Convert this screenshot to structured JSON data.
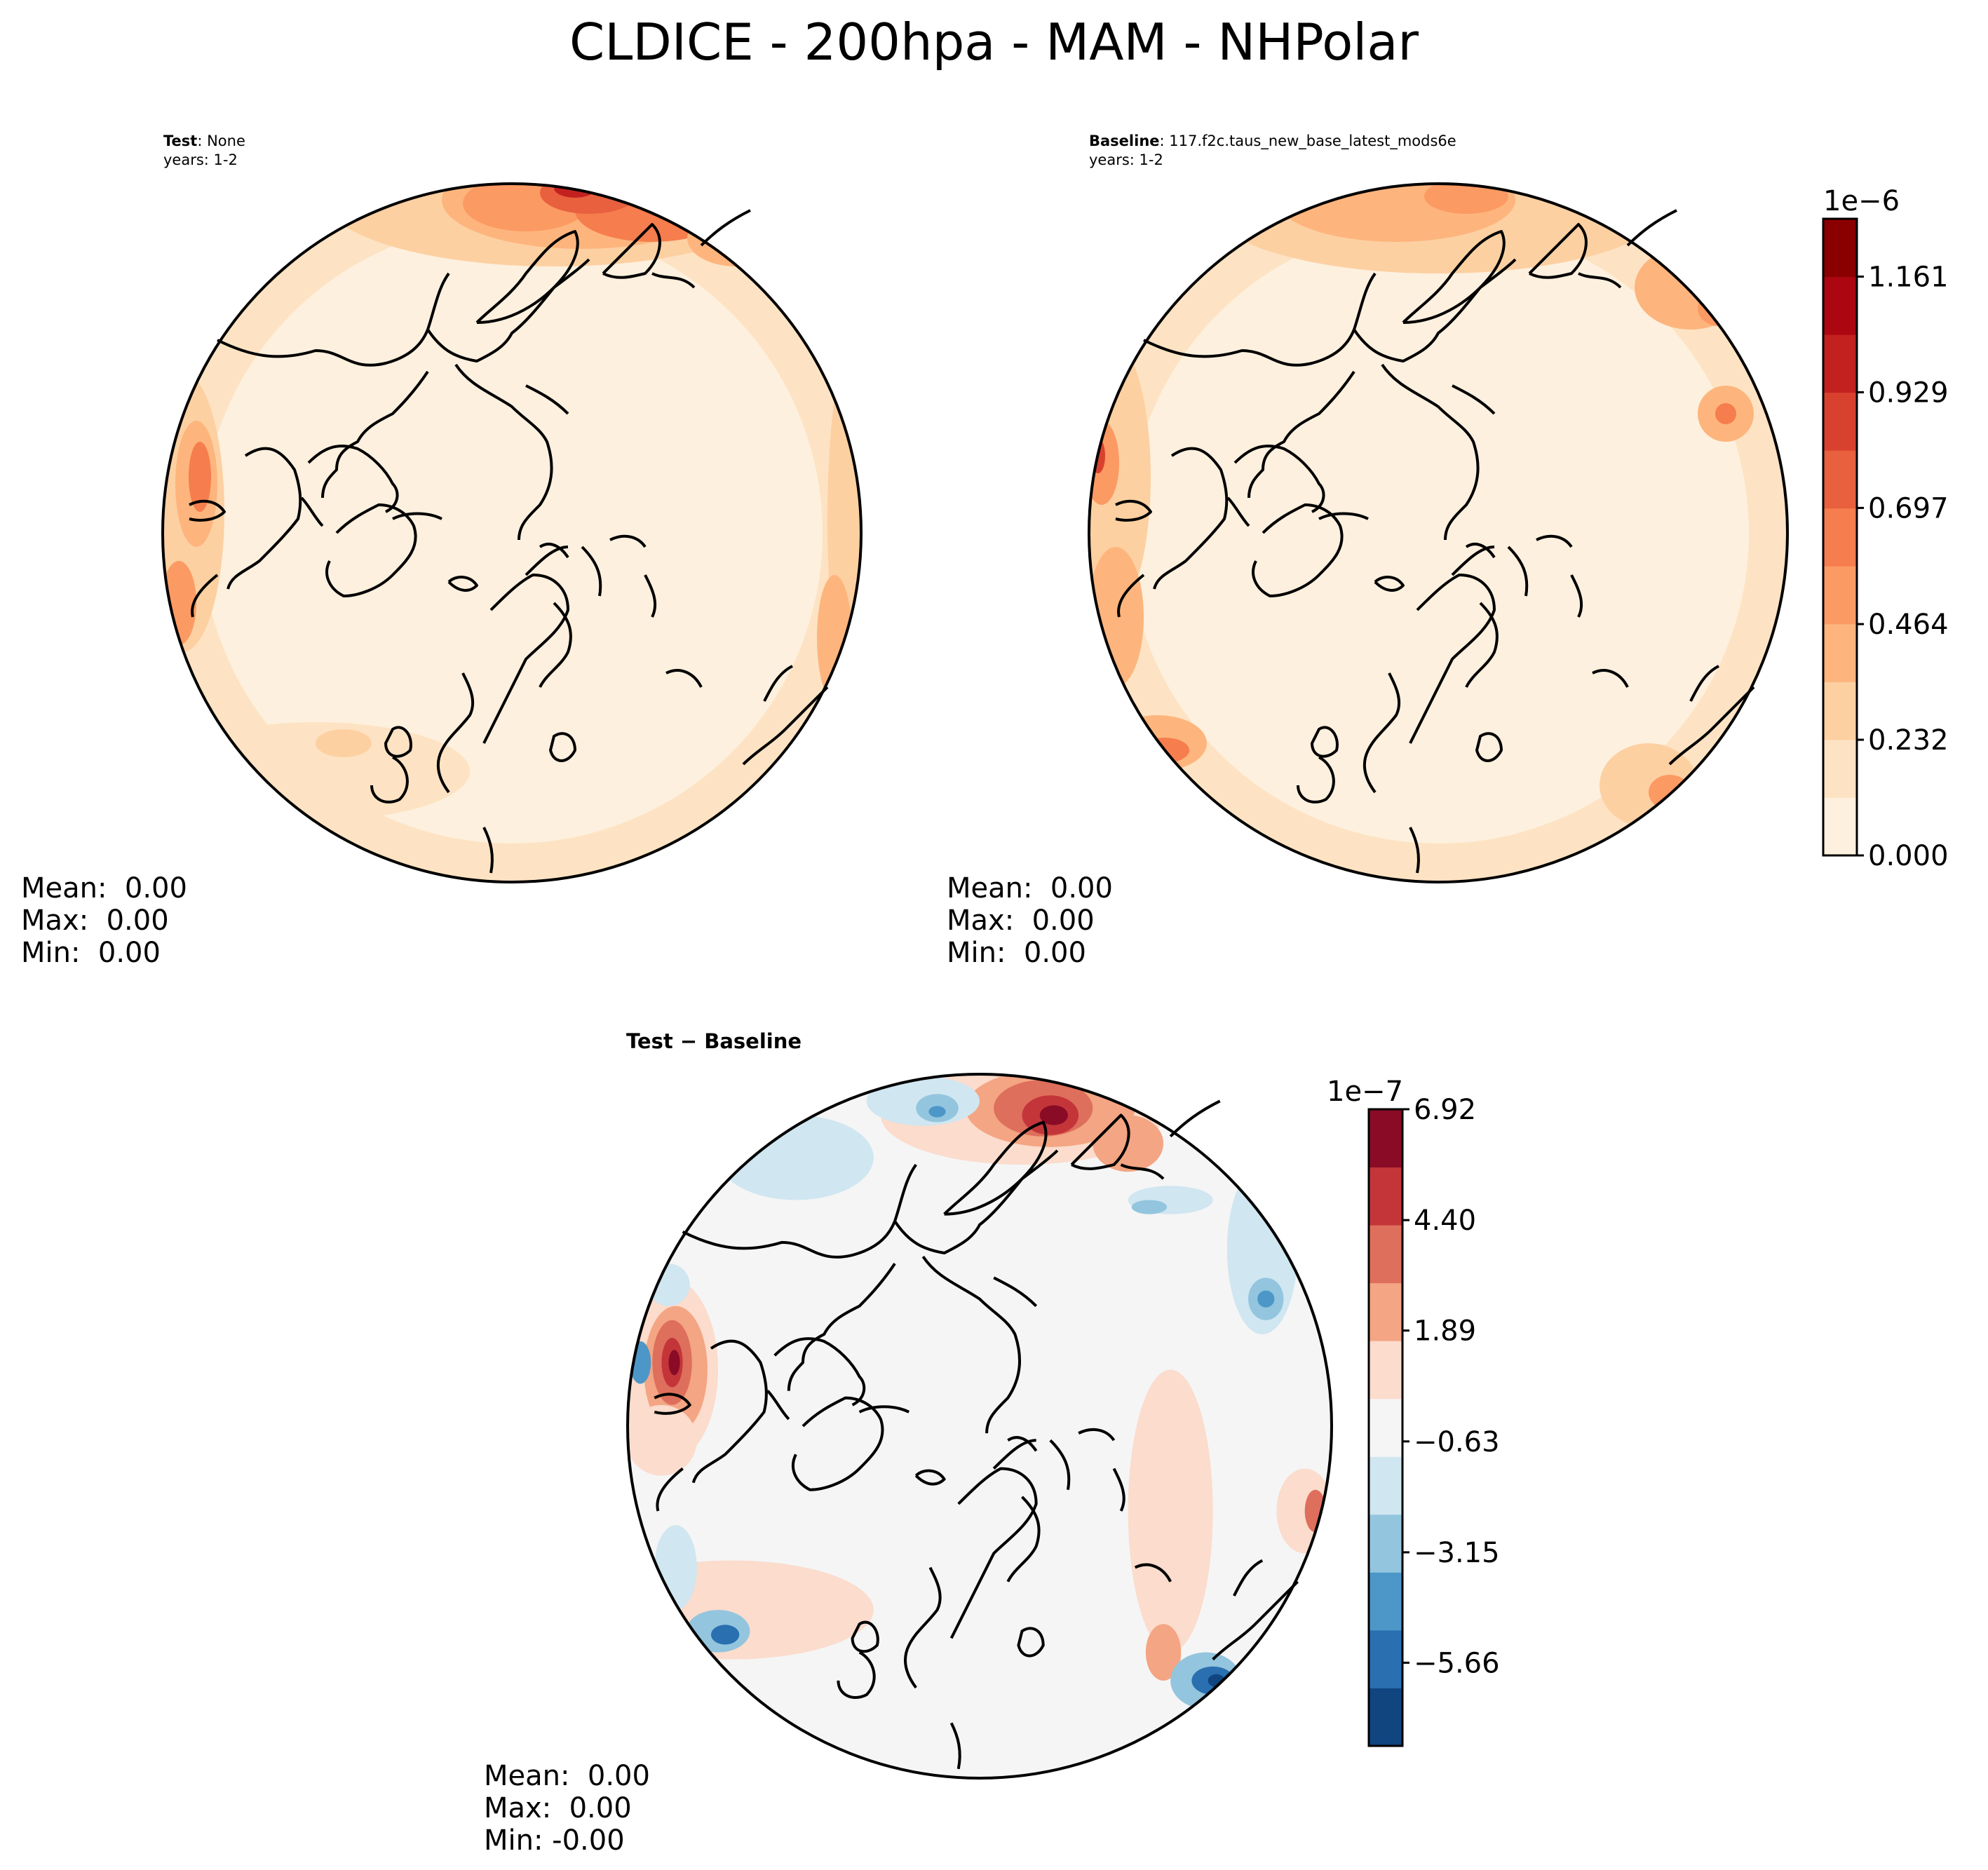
{
  "title": "CLDICE - 200hpa - MAM - NHPolar",
  "panels": [
    {
      "id": "test",
      "label_bold": "Test",
      "label_rest": ": None",
      "years": "years: 1-2",
      "stats": {
        "mean": "Mean:  0.00",
        "max": "Max:  0.00",
        "min": "Min:  0.00"
      }
    },
    {
      "id": "baseline",
      "label_bold": "Baseline",
      "label_rest": ": 117.f2c.taus_new_base_latest_mods6e",
      "years": "years: 1-2",
      "stats": {
        "mean": "Mean:  0.00",
        "max": "Max:  0.00",
        "min": "Min:  0.00"
      }
    },
    {
      "id": "diff",
      "label": "Test − Baseline",
      "stats": {
        "mean": "Mean:  0.00",
        "max": "Max:  0.00",
        "min": "Min: -0.00"
      }
    }
  ],
  "colorbars": {
    "main": {
      "exponent": "1e−6",
      "ticks": [
        "0.000",
        "0.232",
        "0.464",
        "0.697",
        "0.929",
        "1.161"
      ],
      "tick_values": [
        0,
        0.232,
        0.464,
        0.697,
        0.929,
        1.161
      ],
      "range": [
        0,
        1.277
      ],
      "colors": [
        "#fdf0de",
        "#fde3c3",
        "#fdd0a2",
        "#fdb57d",
        "#fc9a63",
        "#f67d4d",
        "#e8603e",
        "#d9412f",
        "#c22120",
        "#ac0610",
        "#8a0000"
      ]
    },
    "diff": {
      "exponent": "1e−7",
      "ticks": [
        "−5.66",
        "−3.15",
        "−0.63",
        "1.89",
        "4.40",
        "6.92"
      ],
      "tick_values": [
        -5.66,
        -3.15,
        -0.63,
        1.89,
        4.4,
        6.92
      ],
      "range": [
        -7.55,
        6.92
      ],
      "colors": [
        "#10457f",
        "#2a6fb0",
        "#4c97c8",
        "#93c5de",
        "#d0e6f1",
        "#f5f5f5",
        "#fbdccd",
        "#f4a583",
        "#de6f5c",
        "#c4353a",
        "#8a0b26"
      ]
    }
  }
}
